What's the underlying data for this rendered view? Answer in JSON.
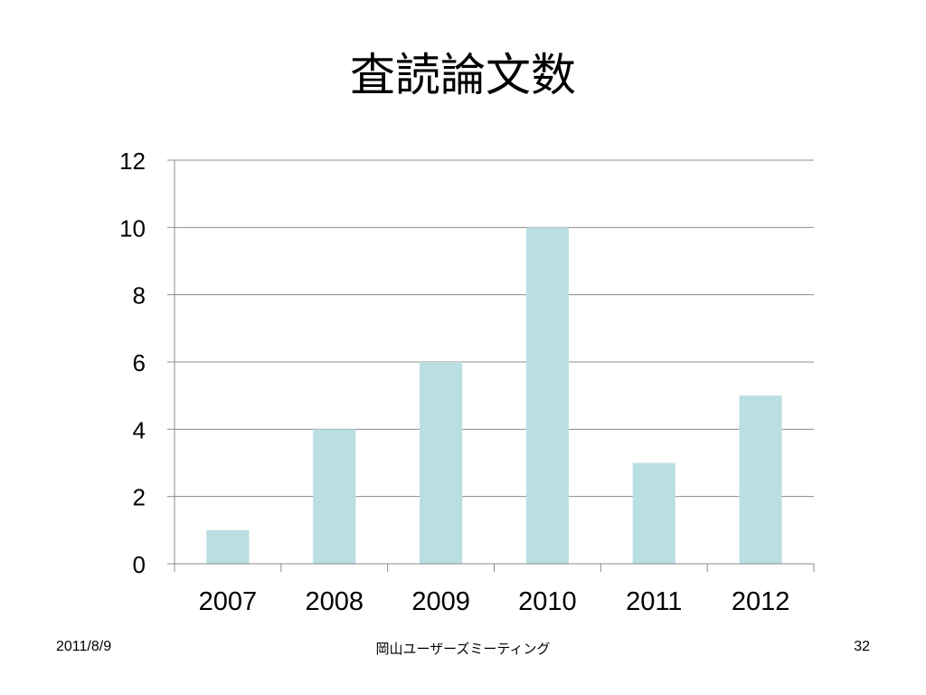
{
  "slide": {
    "title": "査読論文数",
    "footer_date": "2011/8/9",
    "footer_center": "岡山ユーザーズミーティング",
    "page_number": "32"
  },
  "chart_data": {
    "type": "bar",
    "title": "",
    "xlabel": "",
    "ylabel": "",
    "categories": [
      "2007",
      "2008",
      "2009",
      "2010",
      "2011",
      "2012"
    ],
    "values": [
      1,
      4,
      6,
      10,
      3,
      5
    ],
    "ylim": [
      0,
      12
    ],
    "yticks": [
      0,
      2,
      4,
      6,
      8,
      10,
      12
    ],
    "grid": true,
    "legend": "none",
    "bar_color": "#b9dfe3",
    "grid_color": "#8c8c8c"
  }
}
